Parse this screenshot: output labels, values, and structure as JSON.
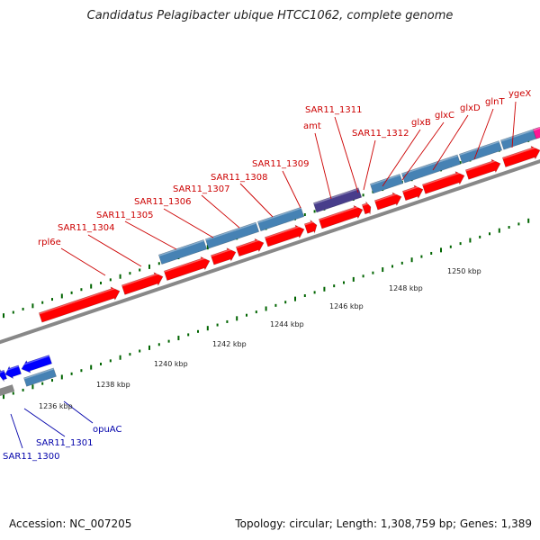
{
  "title": "Candidatus Pelagibacter ubique HTCC1062, complete genome",
  "footer": {
    "accession": "Accession: NC_007205",
    "topology": "Topology: circular; Length: 1,308,759 bp; Genes: 1,389"
  },
  "colors": {
    "forward_gene": "#ff0000",
    "reverse_gene": "#0000ff",
    "operon": "#4682b4",
    "regulon": "#483d8b",
    "pink_feature": "#ff1493",
    "backbone": "#888888",
    "tick": "#006400",
    "forward_label": "#cc0000",
    "reverse_label": "#0000aa"
  },
  "tick_labels": [
    "1236 kbp",
    "1238 kbp",
    "1240 kbp",
    "1242 kbp",
    "1244 kbp",
    "1246 kbp",
    "1248 kbp",
    "1250 kbp"
  ],
  "forward_labels": [
    "rpl6e",
    "SAR11_1304",
    "SAR11_1305",
    "SAR11_1306",
    "SAR11_1307",
    "SAR11_1308",
    "SAR11_1309",
    "amt",
    "SAR11_1311",
    "SAR11_1312",
    "glxB",
    "glxC",
    "glxD",
    "glnT",
    "ygeX"
  ],
  "reverse_labels": [
    "opuAC",
    "SAR11_1301",
    "SAR11_1300"
  ]
}
